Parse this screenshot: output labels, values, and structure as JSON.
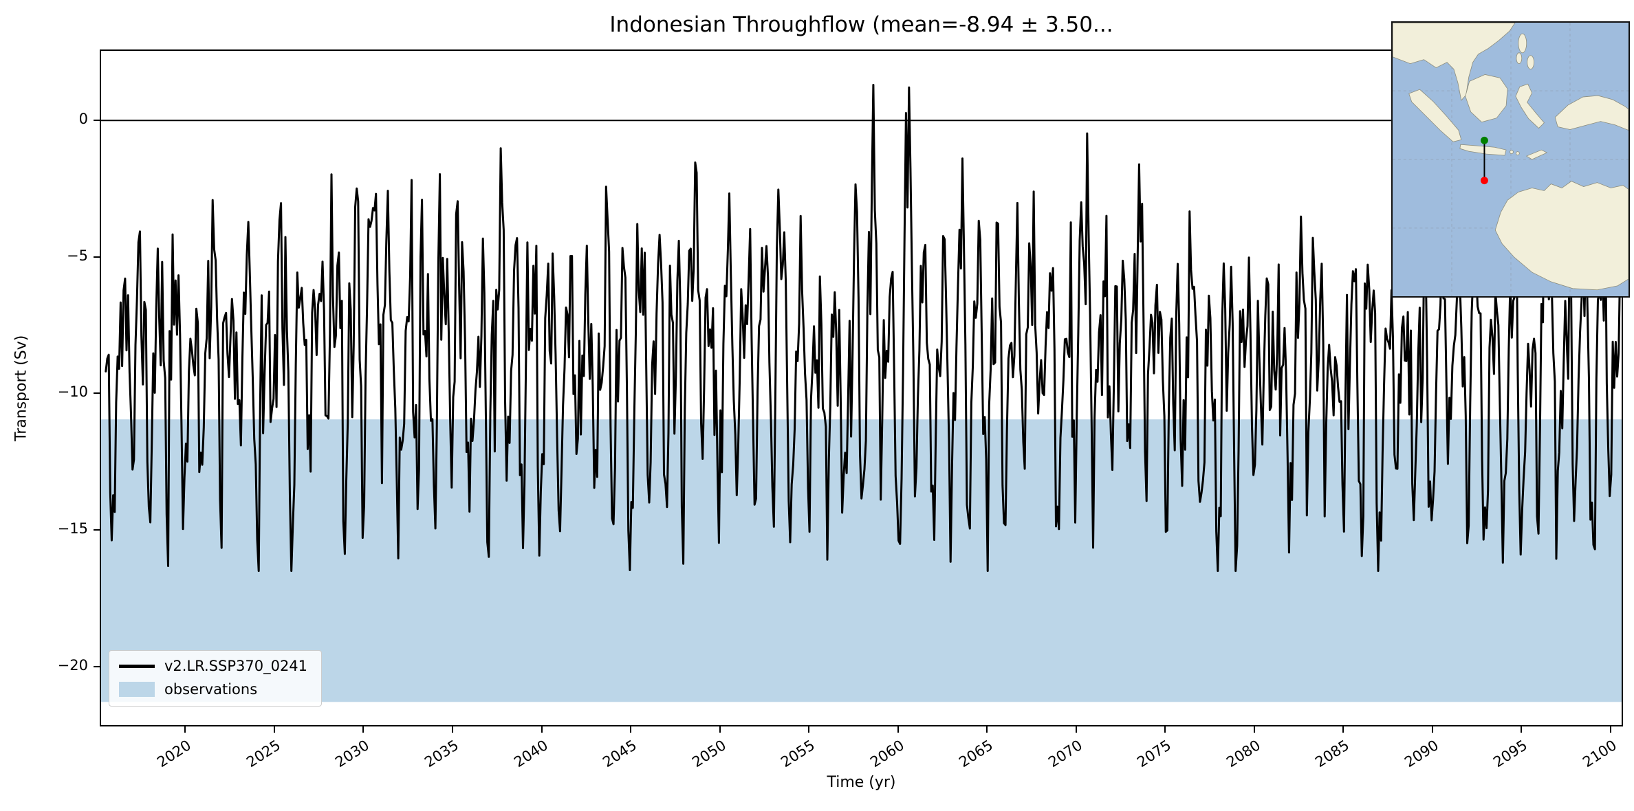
{
  "chart_data": {
    "type": "line",
    "title": "Indonesian Throughflow (mean=-8.94 ± 3.50...",
    "xlabel": "Time (yr)",
    "ylabel": "Transport (Sv)",
    "xlim": [
      2015.2,
      2100.7
    ],
    "ylim": [
      -22.2,
      2.6
    ],
    "xticks": [
      2020,
      2025,
      2030,
      2035,
      2040,
      2045,
      2050,
      2055,
      2060,
      2065,
      2070,
      2075,
      2080,
      2085,
      2090,
      2095,
      2100
    ],
    "xtick_labels": [
      "2020",
      "2025",
      "2030",
      "2035",
      "2040",
      "2045",
      "2050",
      "2055",
      "2060",
      "2065",
      "2070",
      "2075",
      "2080",
      "2085",
      "2090",
      "2095",
      "2100"
    ],
    "yticks": [
      0,
      -5,
      -10,
      -15,
      -20
    ],
    "ytick_labels": [
      "0",
      "−5",
      "−10",
      "−15",
      "−20"
    ],
    "grid": false,
    "zero_line": 0,
    "series": [
      {
        "name": "v2.LR.SSP370_0241",
        "type": "line",
        "color": "#000000",
        "line_width": 3,
        "sampling": "monthly",
        "stats": {
          "mean": -8.94,
          "std": 3.5,
          "approx_min": -16.3,
          "approx_max": 1.5
        },
        "generator": {
          "seed": 11,
          "t_start": 2015.54,
          "t_end": 2100.62,
          "dt": 0.0833333,
          "mean": -8.94,
          "a1": 3.1,
          "p1": 0.25,
          "a2": 1.6,
          "p2": 0.1,
          "phi": 0.4,
          "noise_std": 1.9,
          "clip_min": -16.5,
          "clip_max": 1.5
        }
      }
    ],
    "bands": [
      {
        "label": "observations",
        "color": "#bcd6e8",
        "y_top": -10.95,
        "y_bottom": -21.3
      }
    ],
    "legend": {
      "position": "lower left",
      "entries": [
        {
          "label": "v2.LR.SSP370_0241",
          "swatch": "line",
          "color": "#000000"
        },
        {
          "label": "observations",
          "swatch": "patch",
          "color": "#bcd6e8"
        }
      ]
    }
  },
  "inset_map": {
    "region": "Indonesian seas and Australia",
    "ocean_color": "#9fbcdd",
    "land_color": "#f2efda",
    "gridline_color": "#93a4ba",
    "section_line_color": "#000000",
    "markers": [
      {
        "name": "itf-section-north-point",
        "color": "#008000"
      },
      {
        "name": "itf-section-south-point",
        "color": "#ff0000"
      }
    ]
  }
}
